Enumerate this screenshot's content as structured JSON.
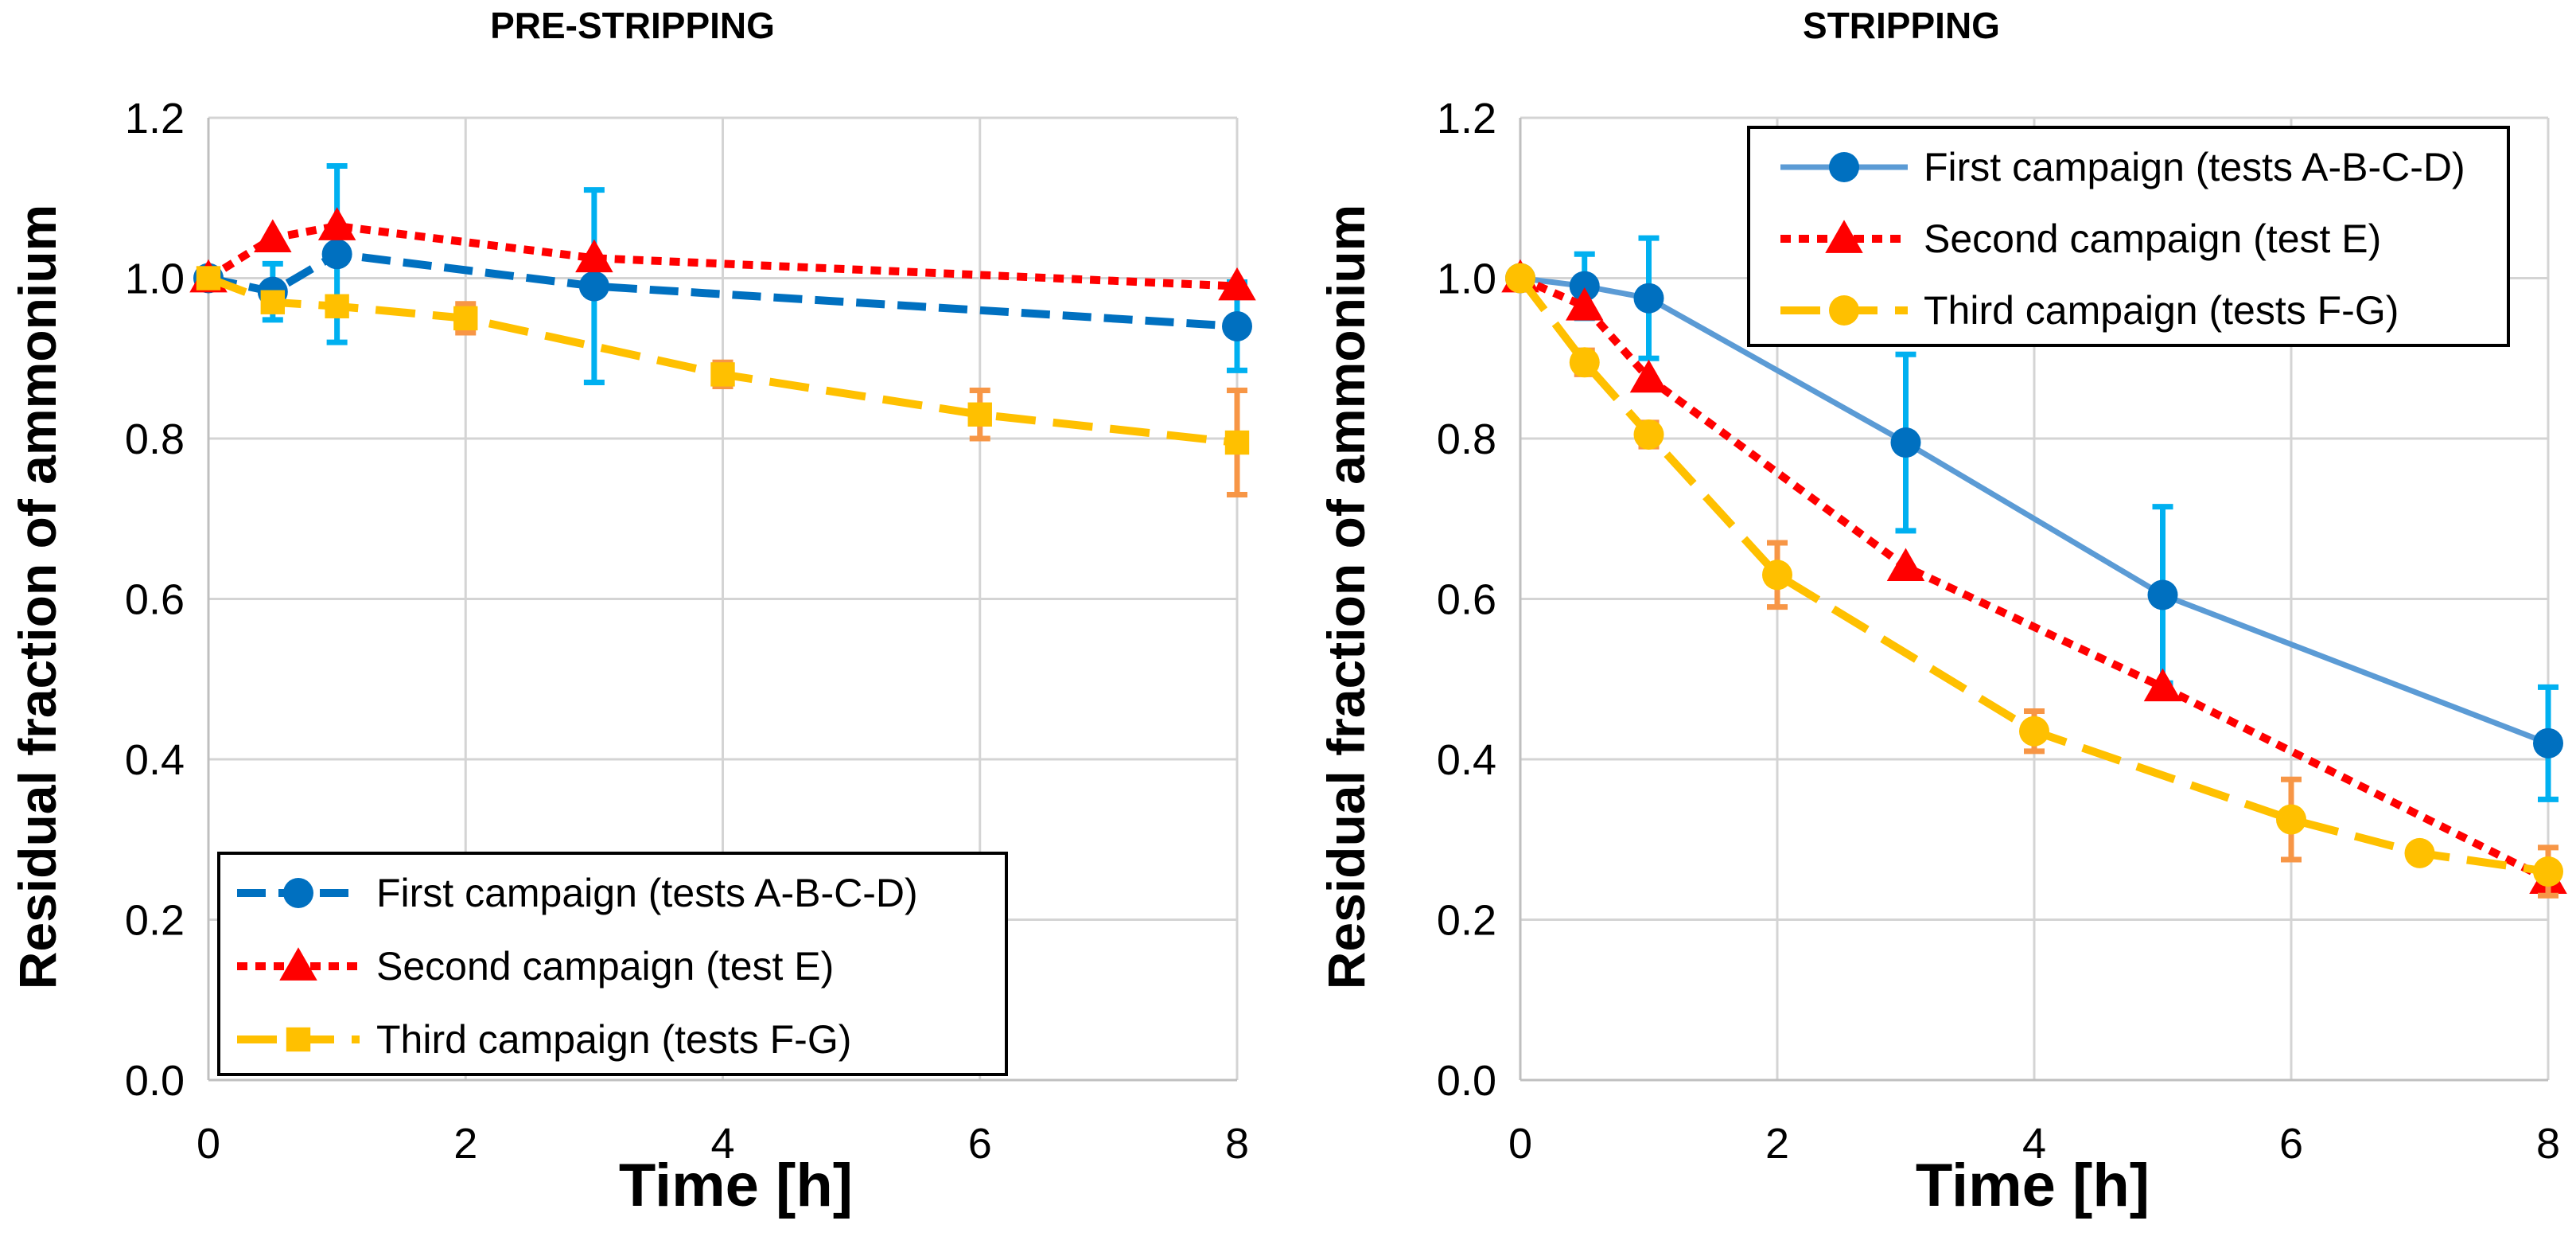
{
  "chart_data": [
    {
      "type": "line",
      "title": "PRE-STRIPPING",
      "xlabel": "Time [h]",
      "ylabel": "Residual fraction of ammonium",
      "xlim": [
        0,
        8
      ],
      "ylim": [
        0,
        1.2
      ],
      "xticks": [
        "0",
        "2",
        "4",
        "6",
        "8"
      ],
      "yticks": [
        "0.0",
        "0.2",
        "0.4",
        "0.6",
        "0.8",
        "1.0",
        "1.2"
      ],
      "grid": true,
      "legend_position": "bottom-left",
      "series": [
        {
          "name": "First campaign (tests A-B-C-D)",
          "color": "#0070C0",
          "error_color": "#00B0F0",
          "line_style": "dash",
          "marker": "circle",
          "x": [
            0,
            0.5,
            1,
            3,
            8
          ],
          "y": [
            1.0,
            0.983,
            1.03,
            0.99,
            0.94
          ],
          "err": [
            0,
            0.035,
            0.11,
            0.12,
            0.055
          ]
        },
        {
          "name": "Second campaign (test E)",
          "color": "#FF0000",
          "line_style": "dot",
          "marker": "triangle",
          "x": [
            0,
            0.5,
            1,
            3,
            8
          ],
          "y": [
            1.0,
            1.05,
            1.065,
            1.025,
            0.99
          ],
          "err": []
        },
        {
          "name": "Third campaign (tests F-G)",
          "color": "#FFC000",
          "error_color": "#F79646",
          "line_style": "longdash",
          "marker": "square",
          "x": [
            0,
            0.5,
            1,
            2,
            4,
            6,
            8
          ],
          "y": [
            1.0,
            0.97,
            0.965,
            0.95,
            0.88,
            0.83,
            0.795
          ],
          "err": [
            0,
            0,
            0,
            0.018,
            0.015,
            0.03,
            0.065
          ]
        }
      ]
    },
    {
      "type": "line",
      "title": "STRIPPING",
      "xlabel": "Time [h]",
      "ylabel": "Residual fraction of ammonium",
      "xlim": [
        0,
        8
      ],
      "ylim": [
        0,
        1.2
      ],
      "xticks": [
        "0",
        "2",
        "4",
        "6",
        "8"
      ],
      "yticks": [
        "0.0",
        "0.2",
        "0.4",
        "0.6",
        "0.8",
        "1.0",
        "1.2"
      ],
      "grid": true,
      "legend_position": "top-right",
      "series": [
        {
          "name": "First campaign (tests A-B-C-D)",
          "color": "#5B9BD5",
          "marker_color": "#0070C0",
          "error_color": "#00B0F0",
          "line_style": "solid",
          "marker": "circle",
          "x": [
            0,
            0.5,
            1,
            3,
            5,
            8
          ],
          "y": [
            1.0,
            0.99,
            0.975,
            0.795,
            0.605,
            0.42
          ],
          "err": [
            0,
            0.04,
            0.075,
            0.11,
            0.11,
            0.07
          ]
        },
        {
          "name": "Second campaign (test E)",
          "color": "#FF0000",
          "line_style": "dot",
          "marker": "triangle",
          "x": [
            0,
            0.5,
            1,
            3,
            5,
            8
          ],
          "y": [
            1.0,
            0.965,
            0.875,
            0.64,
            0.49,
            0.25
          ],
          "err": []
        },
        {
          "name": "Third campaign (tests F-G)",
          "color": "#FFC000",
          "error_color": "#F79646",
          "line_style": "longdash",
          "marker": "circle",
          "x": [
            0,
            0.5,
            1,
            2,
            4,
            6,
            7,
            8
          ],
          "y": [
            1.0,
            0.895,
            0.805,
            0.63,
            0.435,
            0.325,
            0.283,
            0.26
          ],
          "err": [
            0,
            0.015,
            0.015,
            0.04,
            0.025,
            0.05,
            0.01,
            0.03
          ]
        }
      ]
    }
  ]
}
